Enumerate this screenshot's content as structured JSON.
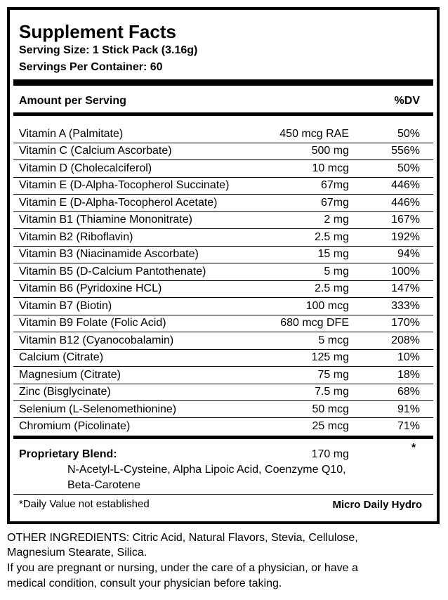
{
  "header": {
    "title": "Supplement Facts",
    "serving_size": "Serving Size: 1 Stick Pack (3.16g)",
    "servings_per_container": "Servings Per Container: 60"
  },
  "table": {
    "headers": [
      "Amount per Serving",
      "%DV"
    ],
    "rows": [
      [
        "Vitamin A (Palmitate)",
        "450 mcg RAE",
        "50%"
      ],
      [
        "Vitamin C (Calcium Ascorbate)",
        "500 mg",
        "556%"
      ],
      [
        "Vitamin D (Cholecalciferol)",
        "10 mcg",
        "50%"
      ],
      [
        "Vitamin E (D-Alpha-Tocopherol Succinate)",
        "67mg",
        "446%"
      ],
      [
        "Vitamin E (D-Alpha-Tocopherol Acetate)",
        "67mg",
        "446%"
      ],
      [
        "Vitamin B1 (Thiamine Mononitrate)",
        "2 mg",
        "167%"
      ],
      [
        "Vitamin B2 (Riboflavin)",
        "2.5 mg",
        "192%"
      ],
      [
        "Vitamin B3 (Niacinamide Ascorbate)",
        "15 mg",
        "94%"
      ],
      [
        "Vitamin B5 (D-Calcium Pantothenate)",
        "5 mg",
        "100%"
      ],
      [
        "Vitamin B6 (Pyridoxine HCL)",
        "2.5 mg",
        "147%"
      ],
      [
        "Vitamin B7 (Biotin)",
        "100 mcg",
        "333%"
      ],
      [
        "Vitamin B9 Folate (Folic Acid)",
        "680 mcg DFE",
        "170%"
      ],
      [
        "Vitamin B12 (Cyanocobalamin)",
        "5 mcg",
        "208%"
      ],
      [
        "Calcium (Citrate)",
        "125 mg",
        "10%"
      ],
      [
        "Magnesium (Citrate)",
        "75 mg",
        "18%"
      ],
      [
        "Zinc (Bisglycinate)",
        "7.5 mg",
        "68%"
      ],
      [
        "Selenium (L-Selenomethionine)",
        "50 mcg",
        "91%"
      ],
      [
        "Chromium (Picolinate)",
        "25 mcg",
        "71%"
      ]
    ]
  },
  "proprietary_blend": {
    "label": "Proprietary Blend:",
    "amount": "170 mg",
    "marker": "*",
    "ingredients": [
      "N-Acetyl-L-Cysteine, Alpha Lipoic Acid, Coenzyme Q10,",
      "Beta-Carotene"
    ]
  },
  "footnote": "*Daily Value not established",
  "brand": "Micro Daily Hydro",
  "other_ingredients": [
    "OTHER INGREDIENTS: Citric Acid, Natural Flavors, Stevia, Cellulose,",
    "Magnesium Stearate, Silica."
  ],
  "warning": [
    "If you are pregnant or nursing, under the care of a physician, or have a",
    "medical condition, consult your physician before taking."
  ]
}
